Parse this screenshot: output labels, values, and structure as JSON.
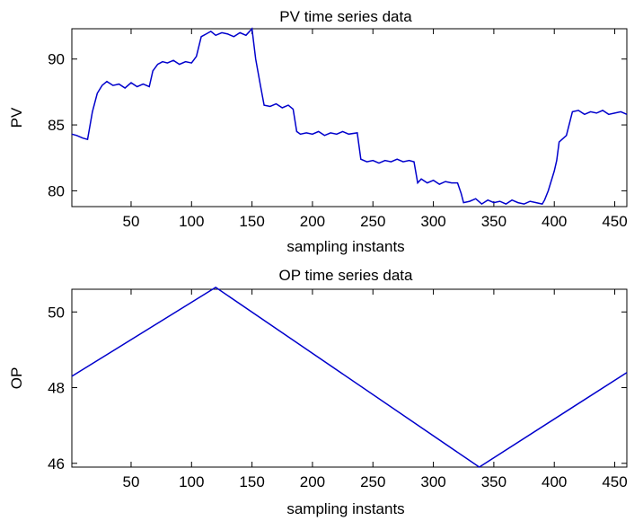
{
  "chart_data": [
    {
      "type": "line",
      "title": "PV time series data",
      "xlabel": "sampling instants",
      "ylabel": "PV",
      "xlim": [
        1,
        460
      ],
      "ylim": [
        78.8,
        92.3
      ],
      "xticks": [
        50,
        100,
        150,
        200,
        250,
        300,
        350,
        400,
        450
      ],
      "yticks": [
        80,
        85,
        90
      ],
      "grid": false,
      "line_color": "#0000cc",
      "series": [
        {
          "x": [
            1,
            5,
            10,
            14,
            18,
            22,
            26,
            30,
            35,
            40,
            45,
            50,
            55,
            60,
            65,
            68,
            72,
            76,
            80,
            85,
            90,
            95,
            100,
            104,
            108,
            112,
            116,
            120,
            125,
            130,
            135,
            140,
            145,
            150,
            153,
            157,
            160,
            165,
            170,
            175,
            180,
            184,
            187,
            190,
            195,
            200,
            205,
            210,
            215,
            220,
            225,
            230,
            237,
            240,
            245,
            250,
            255,
            260,
            265,
            270,
            275,
            280,
            284,
            287,
            290,
            295,
            300,
            305,
            310,
            315,
            320,
            323,
            325,
            330,
            335,
            340,
            345,
            350,
            355,
            360,
            365,
            370,
            375,
            380,
            385,
            390,
            392,
            395,
            400,
            402,
            404,
            410,
            415,
            420,
            425,
            430,
            435,
            440,
            445,
            450,
            455,
            460
          ],
          "y": [
            84.3,
            84.2,
            84.0,
            83.9,
            86.0,
            87.4,
            88.0,
            88.3,
            88.0,
            88.1,
            87.8,
            88.2,
            87.9,
            88.1,
            87.9,
            89.1,
            89.6,
            89.8,
            89.7,
            89.9,
            89.6,
            89.8,
            89.7,
            90.2,
            91.7,
            91.9,
            92.1,
            91.8,
            92.0,
            91.9,
            91.7,
            92.0,
            91.8,
            92.3,
            90.0,
            88.0,
            86.5,
            86.4,
            86.6,
            86.3,
            86.5,
            86.2,
            84.5,
            84.3,
            84.4,
            84.3,
            84.5,
            84.2,
            84.4,
            84.3,
            84.5,
            84.3,
            84.4,
            82.4,
            82.2,
            82.3,
            82.1,
            82.3,
            82.2,
            82.4,
            82.2,
            82.3,
            82.2,
            80.6,
            80.9,
            80.6,
            80.8,
            80.5,
            80.7,
            80.6,
            80.6,
            79.8,
            79.1,
            79.2,
            79.4,
            79.0,
            79.3,
            79.1,
            79.2,
            79.0,
            79.3,
            79.1,
            79.0,
            79.2,
            79.1,
            79.0,
            79.3,
            80.0,
            81.5,
            82.3,
            83.7,
            84.2,
            86.0,
            86.1,
            85.8,
            86.0,
            85.9,
            86.1,
            85.8,
            85.9,
            86.0,
            85.8
          ]
        }
      ]
    },
    {
      "type": "line",
      "title": "OP time series data",
      "xlabel": "sampling instants",
      "ylabel": "OP",
      "xlim": [
        1,
        460
      ],
      "ylim": [
        45.9,
        50.6
      ],
      "xticks": [
        50,
        100,
        150,
        200,
        250,
        300,
        350,
        400,
        450
      ],
      "yticks": [
        46,
        48,
        50
      ],
      "grid": false,
      "line_color": "#0000cc",
      "series": [
        {
          "x": [
            1,
            120,
            338,
            460
          ],
          "y": [
            48.3,
            50.65,
            45.9,
            48.4
          ]
        }
      ]
    }
  ]
}
